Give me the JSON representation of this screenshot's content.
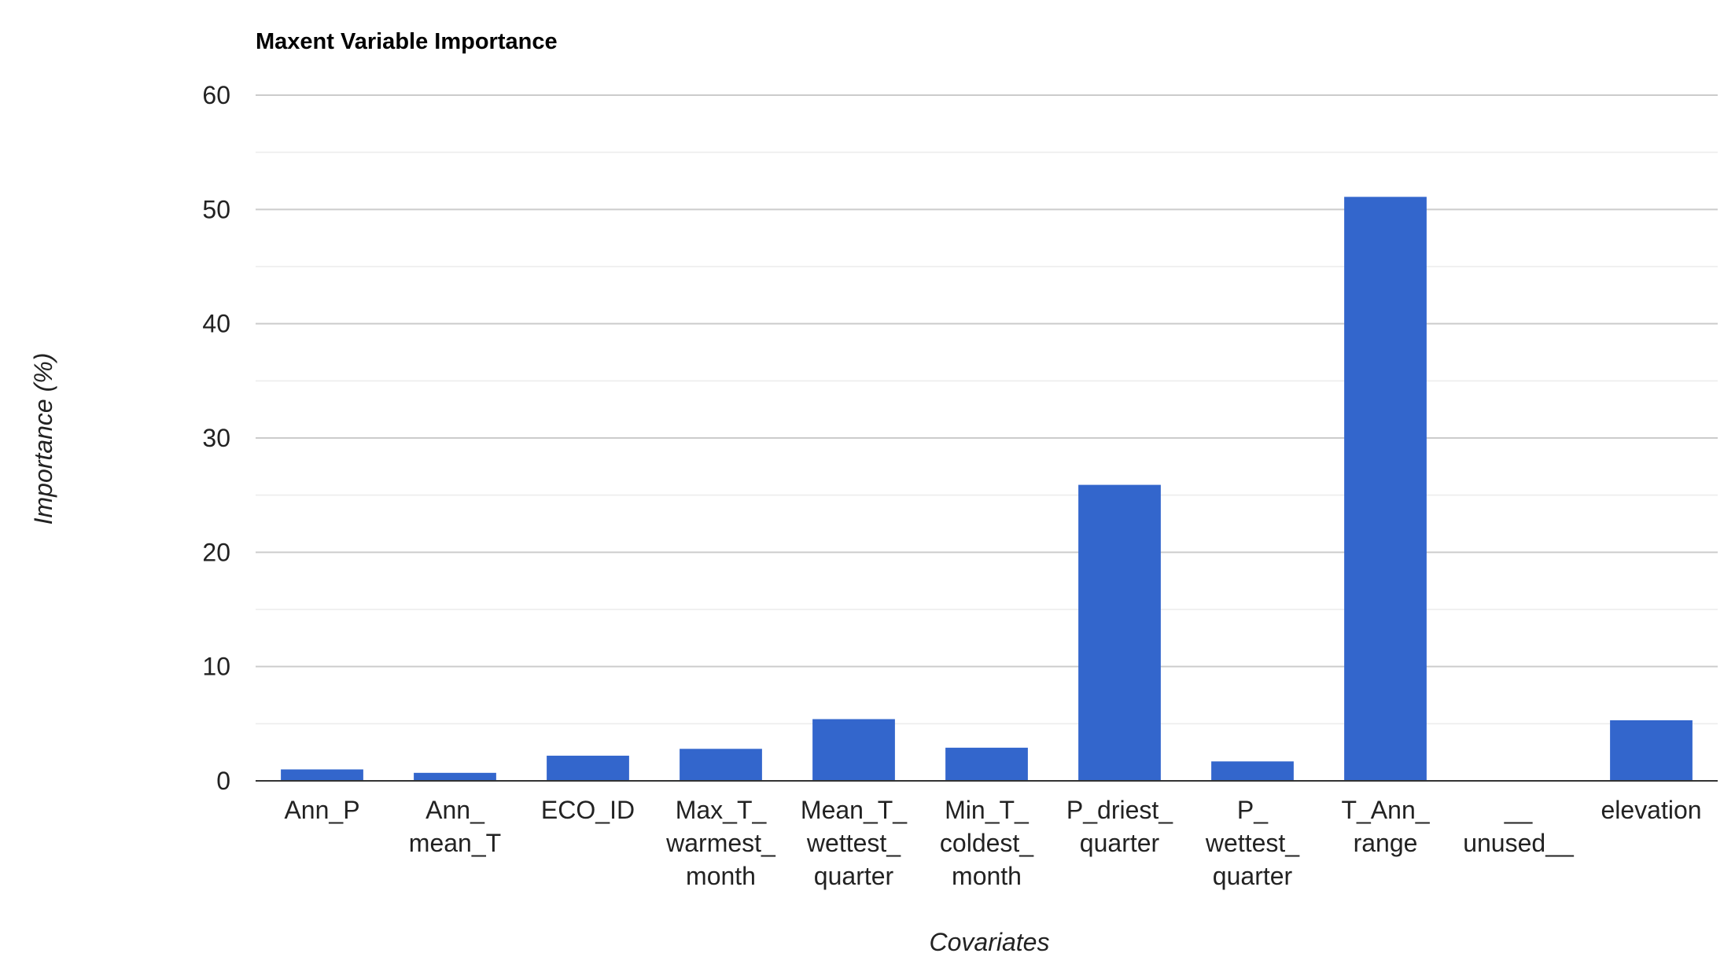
{
  "chart_data": {
    "type": "bar",
    "title": "Maxent Variable Importance",
    "xlabel": "Covariates",
    "ylabel": "Importance (%)",
    "ylim": [
      0,
      60
    ],
    "y_ticks": [
      0,
      10,
      20,
      30,
      40,
      50,
      60
    ],
    "y_tick_labels": [
      "0",
      "10",
      "20",
      "30",
      "40",
      "50",
      "60"
    ],
    "grid": true,
    "legend": "none",
    "categories": [
      [
        "Ann_P"
      ],
      [
        "Ann_",
        "mean_T"
      ],
      [
        "ECO_ID"
      ],
      [
        "Max_T_",
        "warmest_",
        "month"
      ],
      [
        "Mean_T_",
        "wettest_",
        "quarter"
      ],
      [
        "Min_T_",
        "coldest_",
        "month"
      ],
      [
        "P_driest_",
        "quarter"
      ],
      [
        "P_",
        "wettest_",
        "quarter"
      ],
      [
        "T_Ann_",
        "range"
      ],
      [
        "__",
        "unused__"
      ],
      [
        "elevation"
      ]
    ],
    "values": [
      1.0,
      0.7,
      2.2,
      2.8,
      5.4,
      2.9,
      25.9,
      1.7,
      51.1,
      0.0,
      5.3
    ],
    "colors": {
      "bar": "#3366cc",
      "major_grid": "#cccccc",
      "minor_grid": "#ebebeb",
      "baseline": "#333333"
    }
  }
}
